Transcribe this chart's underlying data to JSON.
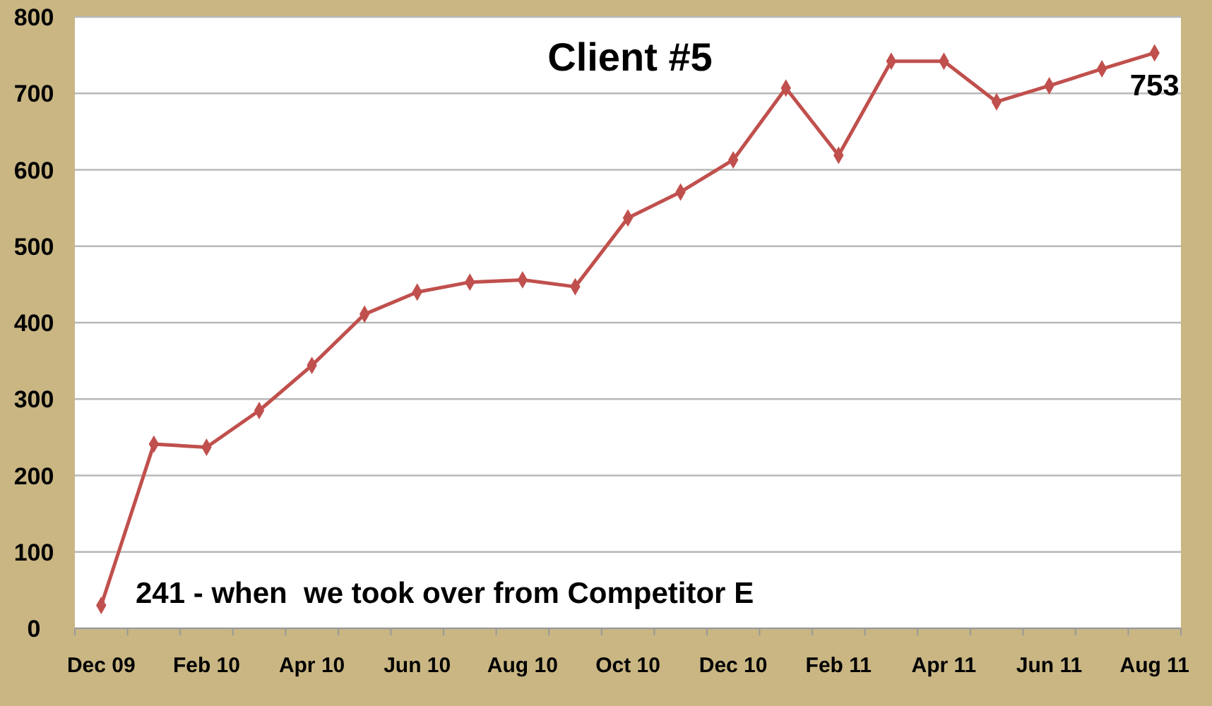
{
  "chart_data": {
    "type": "line",
    "title": "Client #5",
    "categories": [
      "Dec 09",
      null,
      "Feb 10",
      null,
      "Apr 10",
      null,
      "Jun 10",
      null,
      "Aug 10",
      null,
      "Oct 10",
      null,
      "Dec 10",
      null,
      "Feb 11",
      null,
      "Apr 11",
      null,
      "Jun 11",
      null,
      "Aug 11"
    ],
    "series": [
      {
        "color": "#c0504d",
        "values": [
          30,
          241,
          237,
          285,
          344,
          411,
          440,
          453,
          456,
          447,
          537,
          571,
          613,
          707,
          619,
          742,
          742,
          689,
          710,
          732,
          753
        ]
      }
    ],
    "ylim": [
      0,
      800
    ],
    "yticks": [
      0,
      100,
      200,
      300,
      400,
      500,
      600,
      700,
      800
    ],
    "grid": "y",
    "marker": "diamond",
    "line_style": "solid",
    "annotations": [
      "241 - when  we took over from Competitor E",
      {
        "text": "753",
        "x": "Aug 11",
        "y": 753
      }
    ]
  }
}
